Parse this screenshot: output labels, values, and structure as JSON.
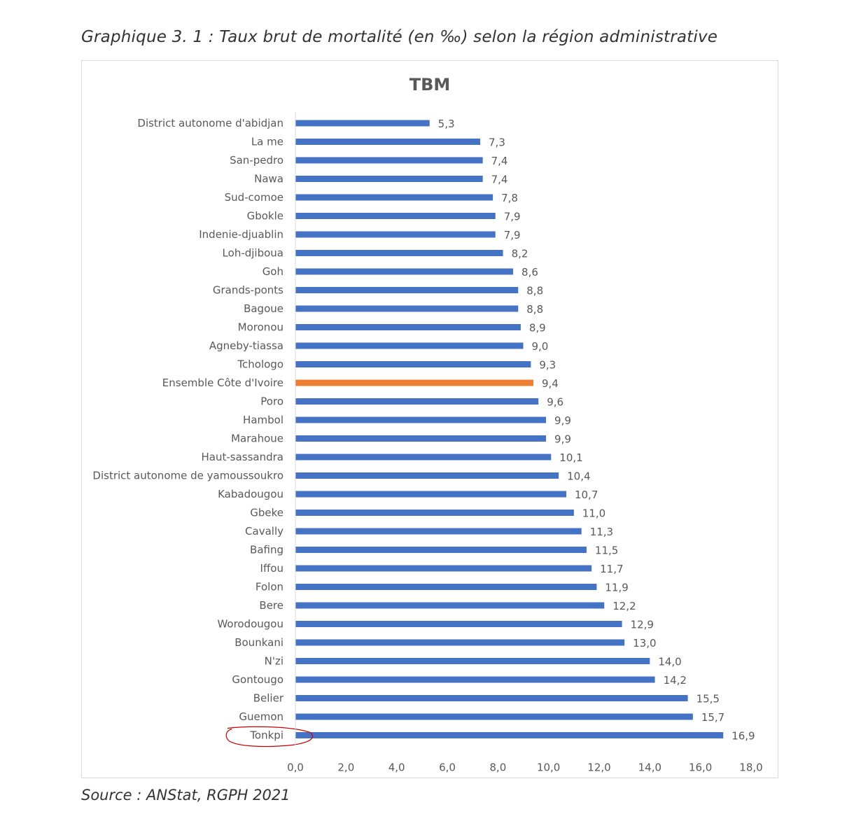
{
  "caption": "Graphique 3. 1 : Taux brut de mortalité (en ‰) selon la région administrative",
  "source": "Source : ANStat, RGPH 2021",
  "colors": {
    "bar": "#4472c4",
    "highlight": "#ed7d31",
    "text": "#595959",
    "circle": "#cc0000"
  },
  "chart_data": {
    "type": "bar",
    "orientation": "horizontal",
    "title": "TBM",
    "xlim": [
      0,
      18
    ],
    "x_ticks": [
      "0,0",
      "2,0",
      "4,0",
      "6,0",
      "8,0",
      "10,0",
      "12,0",
      "14,0",
      "16,0",
      "18,0"
    ],
    "highlight_category": "Ensemble Côte d'Ivoire",
    "annotated_category": "Tonkpi",
    "categories": [
      "District autonome d'abidjan",
      "La me",
      "San-pedro",
      "Nawa",
      "Sud-comoe",
      "Gbokle",
      "Indenie-djuablin",
      "Loh-djiboua",
      "Goh",
      "Grands-ponts",
      "Bagoue",
      "Moronou",
      "Agneby-tiassa",
      "Tchologo",
      "Ensemble Côte d'Ivoire",
      "Poro",
      "Hambol",
      "Marahoue",
      "Haut-sassandra",
      "District autonome de yamoussoukro",
      "Kabadougou",
      "Gbeke",
      "Cavally",
      "Bafing",
      "Iffou",
      "Folon",
      "Bere",
      "Worodougou",
      "Bounkani",
      "N'zi",
      "Gontougo",
      "Belier",
      "Guemon",
      "Tonkpi"
    ],
    "values": [
      5.3,
      7.3,
      7.4,
      7.4,
      7.8,
      7.9,
      7.9,
      8.2,
      8.6,
      8.8,
      8.8,
      8.9,
      9.0,
      9.3,
      9.4,
      9.6,
      9.9,
      9.9,
      10.1,
      10.4,
      10.7,
      11.0,
      11.3,
      11.5,
      11.7,
      11.9,
      12.2,
      12.9,
      13.0,
      14.0,
      14.2,
      15.5,
      15.7,
      16.9
    ],
    "value_labels": [
      "5,3",
      "7,3",
      "7,4",
      "7,4",
      "7,8",
      "7,9",
      "7,9",
      "8,2",
      "8,6",
      "8,8",
      "8,8",
      "8,9",
      "9,0",
      "9,3",
      "9,4",
      "9,6",
      "9,9",
      "9,9",
      "10,1",
      "10,4",
      "10,7",
      "11,0",
      "11,3",
      "11,5",
      "11,7",
      "11,9",
      "12,2",
      "12,9",
      "13,0",
      "14,0",
      "14,2",
      "15,5",
      "15,7",
      "16,9"
    ]
  }
}
